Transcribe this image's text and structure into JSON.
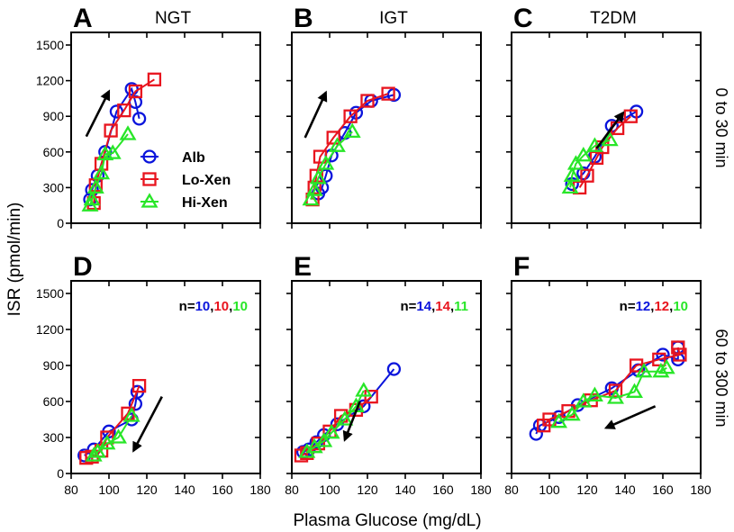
{
  "chart_data": {
    "type": "line",
    "ylabel": "ISR (pmol/min)",
    "xlabel": "Plasma Glucose (mg/dL)",
    "row_labels": [
      "0 to 30 min",
      "60 to 300 min"
    ],
    "xlim": [
      80,
      180
    ],
    "ylim": [
      0,
      1500
    ],
    "xticks": [
      80,
      100,
      120,
      140,
      160,
      180
    ],
    "yticks": [
      0,
      300,
      600,
      900,
      1200,
      1500
    ],
    "legend": {
      "placement": "center-right of panel A",
      "entries": [
        "Alb",
        "Lo-Xen",
        "Hi-Xen"
      ]
    },
    "series_styles": [
      {
        "name": "Alb",
        "marker": "circle",
        "color": "#0a14dc"
      },
      {
        "name": "Lo-Xen",
        "marker": "square",
        "color": "#e8141e"
      },
      {
        "name": "Hi-Xen",
        "marker": "triangle",
        "color": "#28e628"
      }
    ],
    "panels": [
      {
        "letter": "A",
        "title": "NGT",
        "row": 0,
        "col": 0,
        "n": null,
        "arrow": {
          "from": [
            88,
            730
          ],
          "to": [
            100,
            1110
          ]
        },
        "series": [
          {
            "name": "Alb",
            "x": [
              90,
              91,
              94,
              98,
              104,
              112,
              114,
              116
            ],
            "y": [
              200,
              280,
              400,
              600,
              940,
              1130,
              1020,
              880
            ]
          },
          {
            "name": "Lo-Xen",
            "x": [
              92,
              93,
              96,
              101,
              108,
              114,
              124
            ],
            "y": [
              170,
              320,
              500,
              780,
              950,
              1110,
              1210
            ]
          },
          {
            "name": "Hi-Xen",
            "x": [
              90,
              91,
              93,
              96,
              98,
              102,
              110
            ],
            "y": [
              150,
              200,
              300,
              420,
              580,
              590,
              750
            ]
          }
        ]
      },
      {
        "letter": "B",
        "title": "IGT",
        "row": 0,
        "col": 1,
        "n": null,
        "arrow": {
          "from": [
            87,
            720
          ],
          "to": [
            98,
            1100
          ]
        },
        "series": [
          {
            "name": "Alb",
            "x": [
              94,
              96,
              98,
              101,
              108,
              114,
              122,
              134
            ],
            "y": [
              250,
              300,
              400,
              570,
              760,
              930,
              1030,
              1080
            ]
          },
          {
            "name": "Lo-Xen",
            "x": [
              91,
              92,
              93,
              95,
              102,
              111,
              120,
              131
            ],
            "y": [
              200,
              300,
              400,
              560,
              720,
              900,
              1030,
              1090
            ]
          },
          {
            "name": "Hi-Xen",
            "x": [
              90,
              92,
              94,
              98,
              104,
              112
            ],
            "y": [
              200,
              280,
              380,
              500,
              650,
              770
            ]
          }
        ]
      },
      {
        "letter": "C",
        "title": "T2DM",
        "row": 0,
        "col": 2,
        "n": null,
        "arrow": {
          "from": [
            125,
            630
          ],
          "to": [
            139,
            930
          ]
        },
        "series": [
          {
            "name": "Alb",
            "x": [
              112,
              118,
              124,
              133,
              146
            ],
            "y": [
              330,
              420,
              560,
              820,
              940
            ]
          },
          {
            "name": "Lo-Xen",
            "x": [
              116,
              120,
              125,
              128,
              136,
              143
            ],
            "y": [
              300,
              400,
              550,
              640,
              800,
              900
            ]
          },
          {
            "name": "Hi-Xen",
            "x": [
              111,
              112,
              114,
              118,
              124,
              132
            ],
            "y": [
              300,
              400,
              500,
              570,
              650,
              700
            ]
          }
        ]
      },
      {
        "letter": "D",
        "title": "",
        "row": 1,
        "col": 0,
        "n": {
          "prefix": "n=",
          "values": [
            "10",
            "10",
            "10"
          ],
          "sep": ","
        },
        "arrow": {
          "from": [
            128,
            640
          ],
          "to": [
            113,
            190
          ]
        },
        "series": [
          {
            "name": "Alb",
            "x": [
              87,
              92,
              100,
              112,
              114,
              115
            ],
            "y": [
              150,
              200,
              350,
              450,
              580,
              680
            ]
          },
          {
            "name": "Lo-Xen",
            "x": [
              88,
              91,
              96,
              99,
              110,
              116
            ],
            "y": [
              130,
              140,
              190,
              300,
              500,
              730
            ]
          },
          {
            "name": "Hi-Xen",
            "x": [
              92,
              94,
              99,
              105,
              112
            ],
            "y": [
              150,
              180,
              250,
              300,
              480
            ]
          }
        ]
      },
      {
        "letter": "E",
        "title": "",
        "row": 1,
        "col": 1,
        "n": {
          "prefix": "n=",
          "values": [
            "14",
            "14",
            "11"
          ],
          "sep": ","
        },
        "arrow": {
          "from": [
            116,
            600
          ],
          "to": [
            108,
            280
          ]
        },
        "series": [
          {
            "name": "Alb",
            "x": [
              86,
              89,
              93,
              97,
              104,
              118,
              134
            ],
            "y": [
              180,
              200,
              260,
              320,
              410,
              560,
              870
            ]
          },
          {
            "name": "Lo-Xen",
            "x": [
              85,
              88,
              94,
              100,
              106,
              114,
              122
            ],
            "y": [
              150,
              170,
              250,
              350,
              480,
              530,
              640
            ]
          },
          {
            "name": "Hi-Xen",
            "x": [
              88,
              92,
              97,
              101,
              108,
              114,
              118
            ],
            "y": [
              180,
              220,
              270,
              340,
              450,
              560,
              690
            ]
          }
        ]
      },
      {
        "letter": "F",
        "title": "",
        "row": 1,
        "col": 2,
        "n": {
          "prefix": "n=",
          "values": [
            "12",
            "12",
            "10"
          ],
          "sep": ","
        },
        "arrow": {
          "from": [
            156,
            560
          ],
          "to": [
            130,
            380
          ]
        },
        "series": [
          {
            "name": "Alb",
            "x": [
              93,
              95,
              105,
              115,
              133,
              147,
              160,
              168,
              168
            ],
            "y": [
              330,
              400,
              470,
              570,
              710,
              860,
              990,
              950,
              1050
            ]
          },
          {
            "name": "Lo-Xen",
            "x": [
              97,
              100,
              110,
              122,
              135,
              146,
              158,
              169,
              168
            ],
            "y": [
              400,
              450,
              520,
              610,
              690,
              900,
              950,
              990,
              1050
            ]
          },
          {
            "name": "Hi-Xen",
            "x": [
              105,
              112,
              118,
              124,
              135,
              145,
              150,
              159,
              162
            ],
            "y": [
              430,
              490,
              600,
              650,
              630,
              680,
              850,
              850,
              880
            ]
          }
        ]
      }
    ]
  }
}
